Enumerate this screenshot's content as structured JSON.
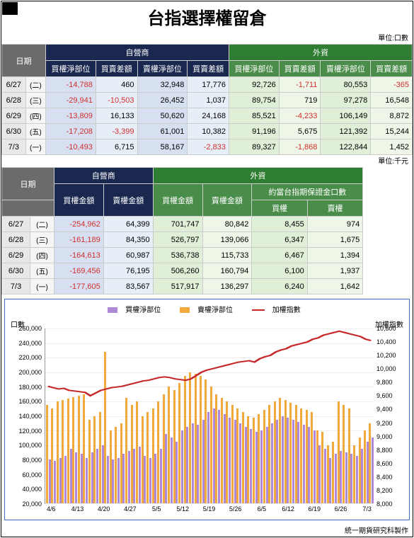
{
  "title": "台指選擇權留倉",
  "unit1": "單位:口數",
  "unit2": "單位:千元",
  "footer": "統一期貨研究科製作",
  "hdr": {
    "date": "日期",
    "dealer": "自營商",
    "foreign": "外資",
    "callNet": "買權淨部位",
    "callDiff": "買賣差額",
    "putNet": "賣權淨部位",
    "putDiff": "買賣差額",
    "callAmt": "買權金額",
    "putAmt": "賣權金額",
    "margin": "約當台指期保證金口數",
    "mCall": "買權",
    "mPut": "賣權"
  },
  "days": [
    "(二)",
    "(三)",
    "(四)",
    "(五)",
    "(一)"
  ],
  "dates": [
    "6/27",
    "6/28",
    "6/29",
    "6/30",
    "7/3"
  ],
  "t1": [
    {
      "d": [
        -14788,
        460,
        32948,
        17776,
        92726,
        -1711,
        80553,
        -365
      ]
    },
    {
      "d": [
        -29941,
        -10503,
        26452,
        1037,
        89754,
        719,
        97278,
        16548
      ]
    },
    {
      "d": [
        -13809,
        16133,
        50620,
        24168,
        85521,
        -4233,
        106149,
        8872
      ]
    },
    {
      "d": [
        -17208,
        -3399,
        61001,
        10382,
        91196,
        5675,
        121392,
        15244
      ]
    },
    {
      "d": [
        -10493,
        6715,
        58167,
        -2833,
        89327,
        -1868,
        122844,
        1452
      ]
    }
  ],
  "t2": [
    {
      "d": [
        -254962,
        64399,
        701747,
        80842,
        8455,
        974
      ]
    },
    {
      "d": [
        -161189,
        84350,
        526797,
        139066,
        6347,
        1675
      ]
    },
    {
      "d": [
        -164613,
        60987,
        536738,
        115733,
        6467,
        1394
      ]
    },
    {
      "d": [
        -169456,
        76195,
        506260,
        160794,
        6100,
        1937
      ]
    },
    {
      "d": [
        -177605,
        83567,
        517917,
        136297,
        6240,
        1642
      ]
    }
  ],
  "chart": {
    "legend": {
      "call": "買權淨部位",
      "put": "賣權淨部位",
      "idx": "加權指數"
    },
    "ylLabel": "口數",
    "yrLabel": "加權指數",
    "colors": {
      "call": "#b088d8",
      "put": "#f2a93c",
      "idx": "#c62828",
      "grid": "#eeeeee",
      "border": "#4472c4"
    },
    "yl": {
      "min": 20000,
      "max": 260000,
      "step": 20000
    },
    "yr": {
      "min": 8000,
      "max": 10600,
      "step": 200
    },
    "xlabels": [
      "4/6",
      "4/13",
      "4/20",
      "4/27",
      "5/5",
      "5/12",
      "5/19",
      "5/26",
      "6/5",
      "6/12",
      "6/19",
      "6/26",
      "7/3"
    ],
    "n": 62,
    "callData": [
      80,
      78,
      82,
      85,
      95,
      90,
      88,
      82,
      90,
      95,
      100,
      85,
      80,
      82,
      88,
      92,
      95,
      98,
      85,
      82,
      88,
      95,
      115,
      110,
      105,
      120,
      125,
      130,
      128,
      135,
      145,
      150,
      148,
      142,
      138,
      135,
      130,
      125,
      122,
      118,
      120,
      125,
      130,
      135,
      140,
      138,
      135,
      132,
      128,
      125,
      120,
      100,
      95,
      82,
      88,
      92,
      90,
      88,
      85,
      95,
      105,
      110
    ],
    "putData": [
      155,
      150,
      160,
      162,
      164,
      166,
      168,
      170,
      135,
      140,
      145,
      228,
      120,
      125,
      130,
      165,
      155,
      160,
      140,
      145,
      150,
      160,
      170,
      180,
      175,
      185,
      195,
      200,
      198,
      195,
      190,
      180,
      170,
      165,
      160,
      155,
      150,
      145,
      140,
      138,
      142,
      148,
      155,
      160,
      165,
      162,
      158,
      155,
      150,
      148,
      145,
      120,
      118,
      100,
      105,
      160,
      155,
      150,
      100,
      110,
      120,
      130
    ],
    "idxData": [
      9740,
      9720,
      9700,
      9710,
      9680,
      9670,
      9660,
      9650,
      9600,
      9640,
      9680,
      9700,
      9720,
      9730,
      9740,
      9760,
      9780,
      9800,
      9820,
      9830,
      9850,
      9870,
      9880,
      9870,
      9850,
      9840,
      9830,
      9850,
      9900,
      9950,
      9980,
      10000,
      10020,
      10040,
      10060,
      10080,
      10100,
      10110,
      10120,
      10100,
      10150,
      10180,
      10200,
      10250,
      10280,
      10300,
      10340,
      10360,
      10380,
      10400,
      10440,
      10460,
      10500,
      10520,
      10540,
      10560,
      10540,
      10520,
      10500,
      10480,
      10440,
      10420
    ]
  }
}
